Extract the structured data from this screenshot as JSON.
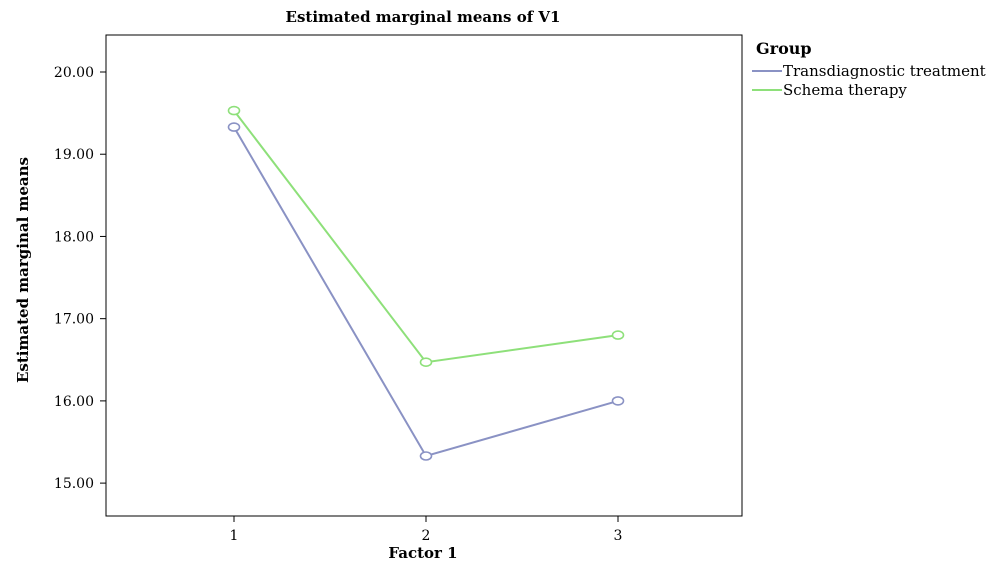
{
  "chart_data": {
    "type": "line",
    "title": "Estimated marginal means of V1",
    "xlabel": "Factor 1",
    "ylabel": "Estimated marginal means",
    "categories": [
      "1",
      "2",
      "3"
    ],
    "ylim": [
      14.6,
      20.45
    ],
    "yticks": [
      "15.00",
      "16.00",
      "17.00",
      "18.00",
      "19.00",
      "20.00"
    ],
    "legend_title": "Group",
    "legend_position": "right",
    "grid": false,
    "series": [
      {
        "name": "Transdiagnostic treatment",
        "values": [
          19.33,
          15.33,
          16.0
        ],
        "color": "#8a92c4"
      },
      {
        "name": "Schema therapy",
        "values": [
          19.53,
          16.47,
          16.8
        ],
        "color": "#8ee07a"
      }
    ]
  }
}
